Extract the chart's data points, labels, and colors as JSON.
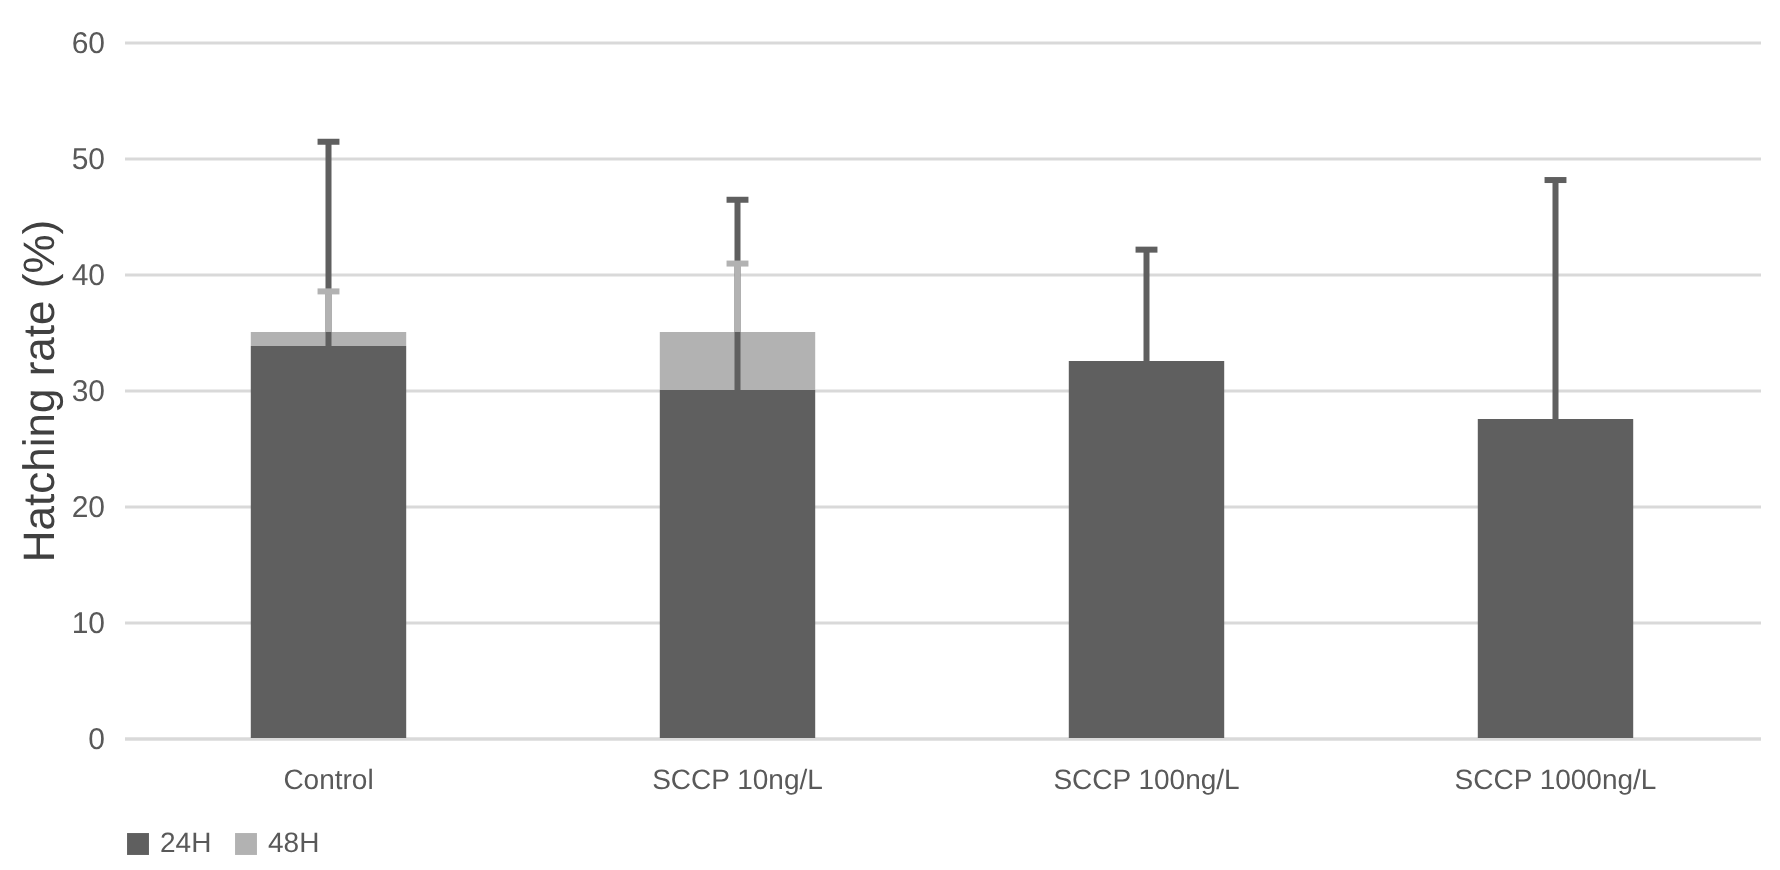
{
  "chart_data": {
    "type": "bar",
    "stacked": true,
    "ylabel": "Hatching rate (%)",
    "categories": [
      "Control",
      "SCCP 10ng/L",
      "SCCP 100ng/L",
      "SCCP 1000ng/L"
    ],
    "series": [
      {
        "name": "24H",
        "color": "#5f5f5f",
        "values": [
          33.8,
          30.0,
          32.5,
          27.5
        ],
        "errors": [
          [
            33.8,
            51.4
          ],
          [
            30.0,
            46.4
          ],
          [
            32.5,
            42.1
          ],
          [
            27.5,
            48.1
          ]
        ]
      },
      {
        "name": "48H",
        "color": "#b2b2b2",
        "values": [
          1.2,
          5.0,
          null,
          null
        ],
        "errors": [
          [
            35.0,
            38.5
          ],
          [
            35.0,
            40.9
          ],
          null,
          null
        ]
      }
    ],
    "ylim": [
      0,
      60
    ],
    "yticks": [
      0,
      10,
      20,
      30,
      40,
      50,
      60
    ],
    "grid": "y",
    "legend": "bottom"
  }
}
